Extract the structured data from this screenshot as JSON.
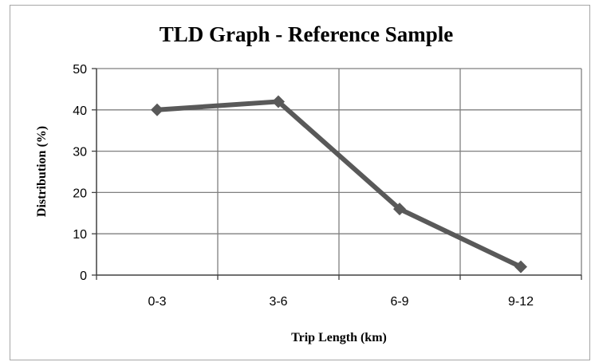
{
  "chart_data": {
    "type": "line",
    "title": "TLD Graph - Reference Sample",
    "xlabel": "Trip Length (km)",
    "ylabel": "Distribution (%)",
    "categories": [
      "0-3",
      "3-6",
      "6-9",
      "9-12"
    ],
    "series": [
      {
        "values": [
          40,
          42,
          16,
          2
        ],
        "color": "#595959"
      }
    ],
    "ylim": [
      0,
      50
    ],
    "yticks": [
      0,
      10,
      20,
      30,
      40,
      50
    ],
    "grid": true,
    "legend": "none",
    "gridColor": "#7f7f7f",
    "axisColor": "#404040"
  }
}
